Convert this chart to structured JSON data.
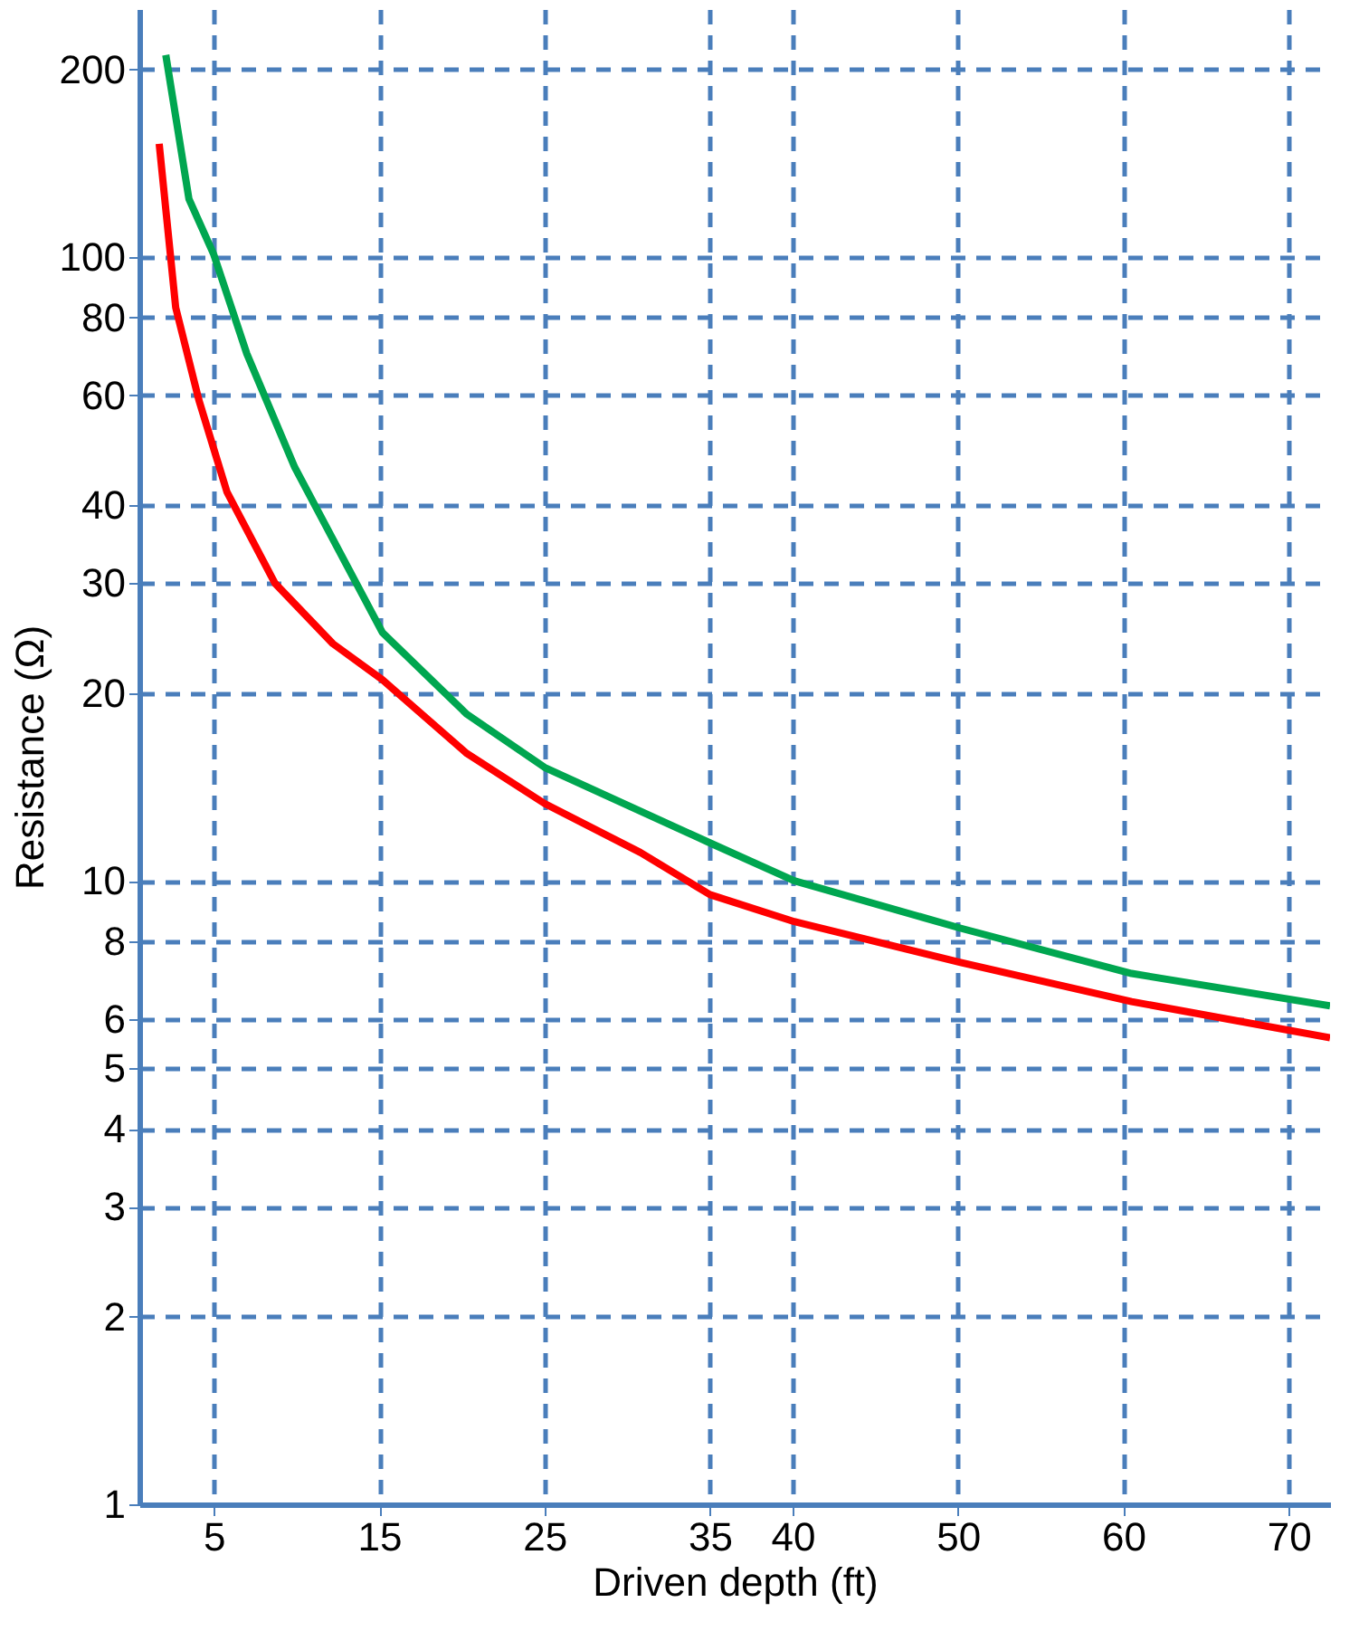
{
  "chart_data": {
    "type": "line",
    "xlabel": "Driven depth (ft)",
    "ylabel": "Resistance (Ω)",
    "log": "y",
    "grid": true,
    "legend": false,
    "marker": "none",
    "line_style": "solid",
    "xlim": [
      0.5,
      72.5
    ],
    "xticks": [
      5,
      15,
      25,
      35,
      40,
      50,
      60,
      70
    ],
    "ylim": [
      1,
      250
    ],
    "yticks": [
      1,
      2,
      3,
      4,
      5,
      6,
      8,
      10,
      20,
      30,
      40,
      60,
      80,
      100,
      200
    ],
    "series": [
      {
        "color": "#00a650",
        "x": [
          2.1,
          3.5,
          5,
          7,
          9.9,
          15.2,
          20.3,
          25,
          35,
          40.1,
          50.1,
          60.5,
          72.5
        ],
        "values": [
          211,
          124,
          101,
          70,
          46,
          25,
          18.5,
          15.2,
          11.5,
          10,
          8.4,
          7.1,
          6.3
        ]
      },
      {
        "color": "#ff0000",
        "x": [
          1.7,
          2.7,
          4.1,
          5.8,
          8.7,
          12.2,
          15.2,
          20.3,
          25,
          30.8,
          35,
          40.1,
          50.1,
          60.5,
          72.5
        ],
        "values": [
          152,
          83,
          59,
          42,
          30,
          24,
          21,
          16,
          13.3,
          11.1,
          9.5,
          8.6,
          7.4,
          6.4,
          5.6
        ]
      }
    ]
  }
}
